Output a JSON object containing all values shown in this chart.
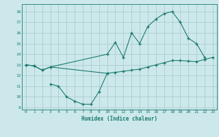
{
  "xlabel": "Humidex (Indice chaleur)",
  "bg_color": "#cce8eb",
  "grid_color": "#aacccc",
  "line_color": "#1a7a6e",
  "xlim": [
    -0.5,
    23.5
  ],
  "ylim": [
    8.8,
    18.7
  ],
  "yticks": [
    9,
    10,
    11,
    12,
    13,
    14,
    15,
    16,
    17,
    18
  ],
  "xticks": [
    0,
    1,
    2,
    3,
    4,
    5,
    6,
    7,
    8,
    9,
    10,
    11,
    12,
    13,
    14,
    15,
    16,
    17,
    18,
    19,
    20,
    21,
    22,
    23
  ],
  "line1_x": [
    0,
    1,
    2,
    3,
    10,
    11,
    12,
    13,
    14,
    15,
    16,
    17,
    18,
    19,
    20,
    21,
    22
  ],
  "line1_y": [
    13.0,
    12.9,
    12.5,
    12.8,
    14.0,
    15.1,
    13.7,
    16.0,
    15.0,
    16.6,
    17.3,
    17.8,
    18.0,
    17.0,
    15.5,
    15.0,
    13.7
  ],
  "line2_x": [
    0,
    1,
    2,
    3,
    10,
    11,
    12,
    13,
    14,
    15,
    16,
    17,
    18,
    19,
    20,
    21,
    22,
    23
  ],
  "line2_y": [
    13.0,
    12.9,
    12.5,
    12.8,
    12.2,
    12.3,
    12.4,
    12.5,
    12.6,
    12.8,
    13.0,
    13.2,
    13.4,
    13.4,
    13.35,
    13.3,
    13.5,
    13.7
  ],
  "line3_x": [
    3,
    4,
    5,
    6,
    7,
    8,
    9,
    10
  ],
  "line3_y": [
    11.2,
    11.0,
    10.0,
    9.6,
    9.3,
    9.3,
    10.5,
    12.2
  ]
}
